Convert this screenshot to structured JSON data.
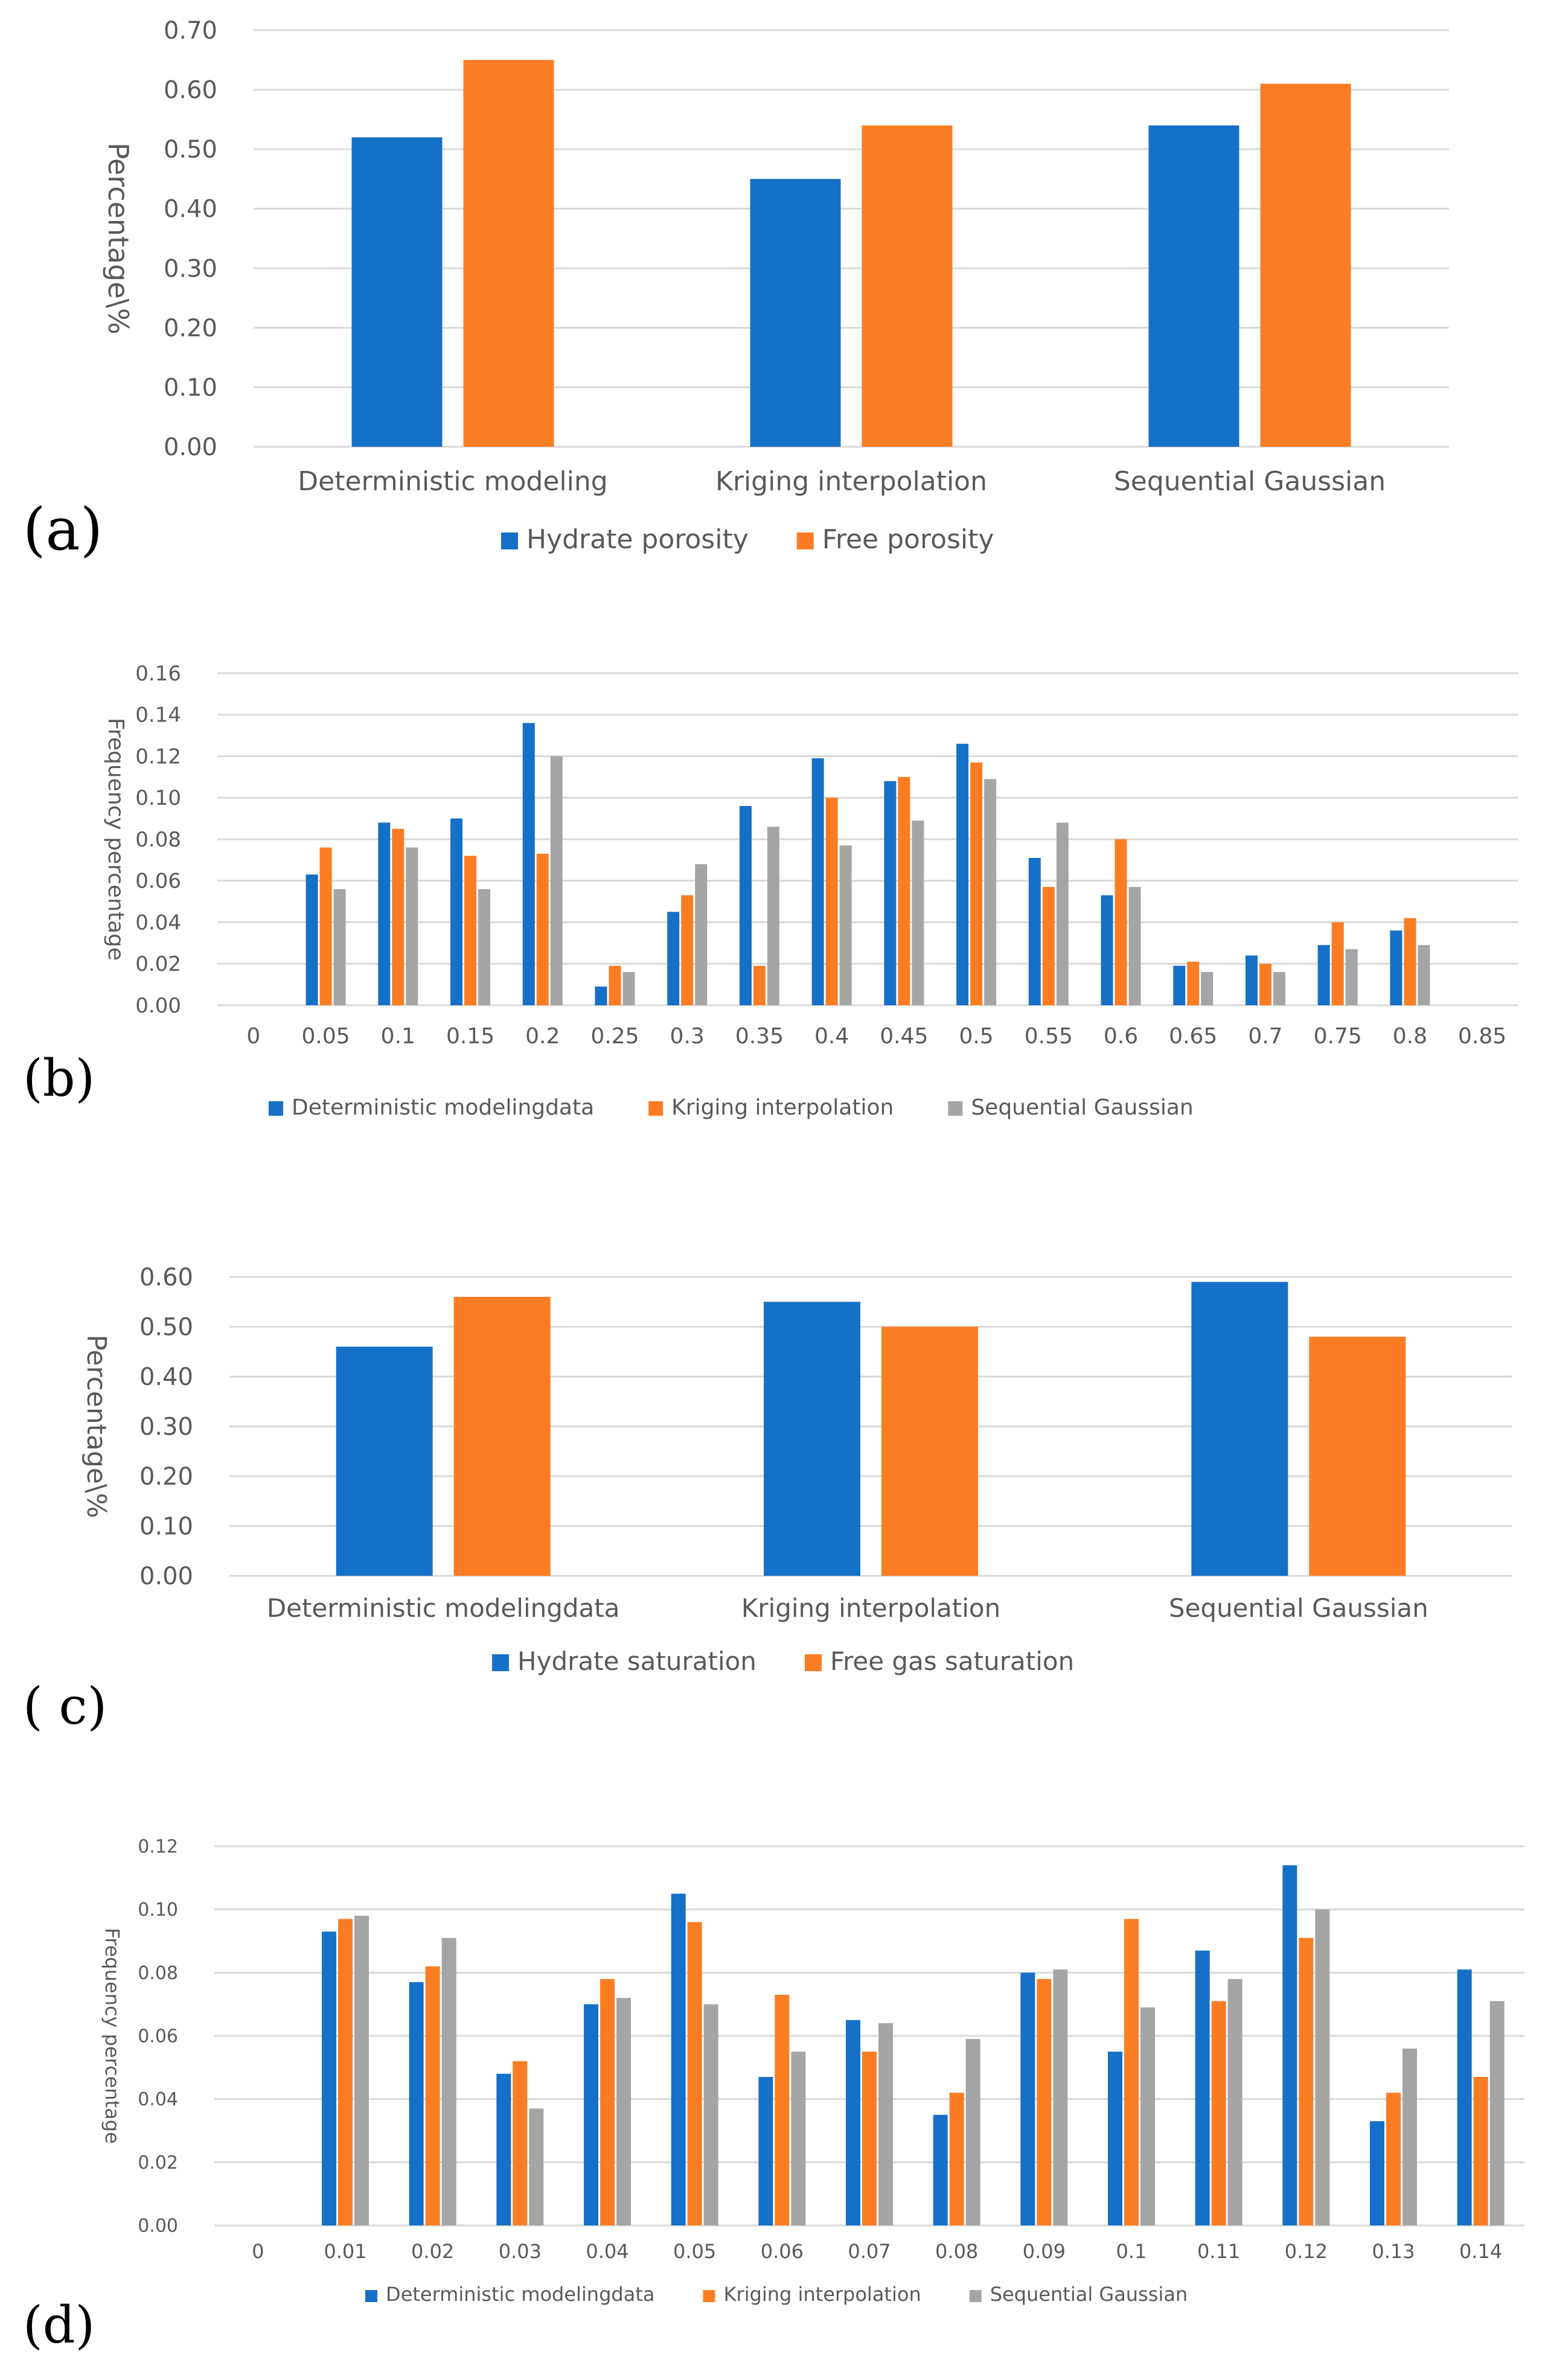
{
  "colors": {
    "blue": "#1570c8",
    "orange": "#fb7d23",
    "gray": "#a5a5a5",
    "grid": "#d9d9d9",
    "text": "#595959"
  },
  "chart_data": [
    {
      "panel": "(a)",
      "type": "bar",
      "categories": [
        "Deterministic modeling",
        "Kriging interpolation",
        "Sequential Gaussian"
      ],
      "series": [
        {
          "name": "Hydrate porosity",
          "color": "#1570c8",
          "values": [
            0.52,
            0.45,
            0.54
          ]
        },
        {
          "name": "Free porosity",
          "color": "#fb7d23",
          "values": [
            0.65,
            0.54,
            0.61
          ]
        }
      ],
      "ylabel": "Percentage\\%",
      "ylim": [
        0,
        0.7
      ],
      "yticks": [
        "0.00",
        "0.10",
        "0.20",
        "0.30",
        "0.40",
        "0.50",
        "0.60",
        "0.70"
      ],
      "grid": true,
      "legend": "bottom"
    },
    {
      "panel": "(b)",
      "type": "bar",
      "categories": [
        "0",
        "0.05",
        "0.1",
        "0.15",
        "0.2",
        "0.25",
        "0.3",
        "0.35",
        "0.4",
        "0.45",
        "0.5",
        "0.55",
        "0.6",
        "0.65",
        "0.7",
        "0.75",
        "0.8",
        "0.85"
      ],
      "series": [
        {
          "name": "Deterministic modelingdata",
          "color": "#1570c8",
          "values": [
            0,
            0.063,
            0.088,
            0.09,
            0.136,
            0.009,
            0.045,
            0.096,
            0.119,
            0.108,
            0.126,
            0.071,
            0.053,
            0.019,
            0.024,
            0.029,
            0.036,
            0
          ]
        },
        {
          "name": "Kriging interpolation",
          "color": "#fb7d23",
          "values": [
            0,
            0.076,
            0.085,
            0.072,
            0.073,
            0.019,
            0.053,
            0.019,
            0.1,
            0.11,
            0.117,
            0.057,
            0.08,
            0.021,
            0.02,
            0.04,
            0.042,
            0
          ]
        },
        {
          "name": "Sequential Gaussian",
          "color": "#a5a5a5",
          "values": [
            0,
            0.056,
            0.076,
            0.056,
            0.12,
            0.016,
            0.068,
            0.086,
            0.077,
            0.089,
            0.109,
            0.088,
            0.057,
            0.016,
            0.016,
            0.027,
            0.029,
            0
          ]
        }
      ],
      "ylabel": "Frequency percentage",
      "ylim": [
        0,
        0.16
      ],
      "yticks": [
        "0.00",
        "0.02",
        "0.04",
        "0.06",
        "0.08",
        "0.10",
        "0.12",
        "0.14",
        "0.16"
      ],
      "grid": true,
      "legend": "bottom"
    },
    {
      "panel": "( c)",
      "type": "bar",
      "categories": [
        "Deterministic modelingdata",
        "Kriging interpolation",
        "Sequential Gaussian"
      ],
      "series": [
        {
          "name": "Hydrate saturation",
          "color": "#1570c8",
          "values": [
            0.46,
            0.55,
            0.59
          ]
        },
        {
          "name": "Free gas saturation",
          "color": "#fb7d23",
          "values": [
            0.56,
            0.5,
            0.48
          ]
        }
      ],
      "ylabel": "Percentage\\%",
      "ylim": [
        0,
        0.6
      ],
      "yticks": [
        "0.00",
        "0.10",
        "0.20",
        "0.30",
        "0.40",
        "0.50",
        "0.60"
      ],
      "grid": true,
      "legend": "bottom"
    },
    {
      "panel": "(d)",
      "type": "bar",
      "categories": [
        "0",
        "0.01",
        "0.02",
        "0.03",
        "0.04",
        "0.05",
        "0.06",
        "0.07",
        "0.08",
        "0.09",
        "0.1",
        "0.11",
        "0.12",
        "0.13",
        "0.14"
      ],
      "series": [
        {
          "name": "Deterministic modelingdata",
          "color": "#1570c8",
          "values": [
            0,
            0.093,
            0.077,
            0.048,
            0.07,
            0.105,
            0.047,
            0.065,
            0.035,
            0.08,
            0.055,
            0.087,
            0.114,
            0.033,
            0.081
          ]
        },
        {
          "name": "Kriging interpolation",
          "color": "#fb7d23",
          "values": [
            0,
            0.097,
            0.082,
            0.052,
            0.078,
            0.096,
            0.073,
            0.055,
            0.042,
            0.078,
            0.097,
            0.071,
            0.091,
            0.042,
            0.047
          ]
        },
        {
          "name": "Sequential Gaussian",
          "color": "#a5a5a5",
          "values": [
            0,
            0.098,
            0.091,
            0.037,
            0.072,
            0.07,
            0.055,
            0.064,
            0.059,
            0.081,
            0.069,
            0.078,
            0.1,
            0.056,
            0.071
          ]
        }
      ],
      "ylabel": "Frequency percentage",
      "ylim": [
        0,
        0.12
      ],
      "yticks": [
        "0.00",
        "0.02",
        "0.04",
        "0.06",
        "0.08",
        "0.10",
        "0.12"
      ],
      "grid": true,
      "legend": "bottom"
    }
  ]
}
